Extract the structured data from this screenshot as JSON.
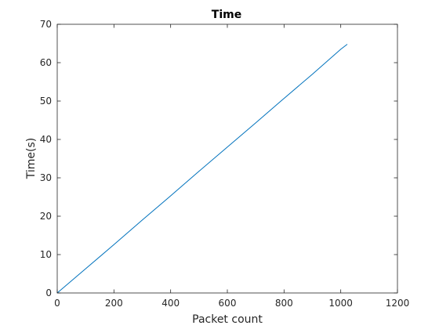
{
  "chart_data": {
    "type": "line",
    "title": "Time",
    "xlabel": "Packet count",
    "ylabel": "Time(s)",
    "xlim": [
      0,
      1200
    ],
    "ylim": [
      0,
      70
    ],
    "xticks": [
      0,
      200,
      400,
      600,
      800,
      1000,
      1200
    ],
    "yticks": [
      0,
      10,
      20,
      30,
      40,
      50,
      60,
      70
    ],
    "grid": false,
    "series": [
      {
        "color": "#0072BD",
        "x": [
          0,
          100,
          200,
          300,
          400,
          500,
          600,
          700,
          800,
          900,
          1000,
          1023
        ],
        "y": [
          0,
          6.3,
          12.6,
          19.0,
          25.3,
          31.7,
          38.0,
          44.3,
          50.7,
          57.0,
          63.5,
          64.8
        ]
      }
    ]
  }
}
